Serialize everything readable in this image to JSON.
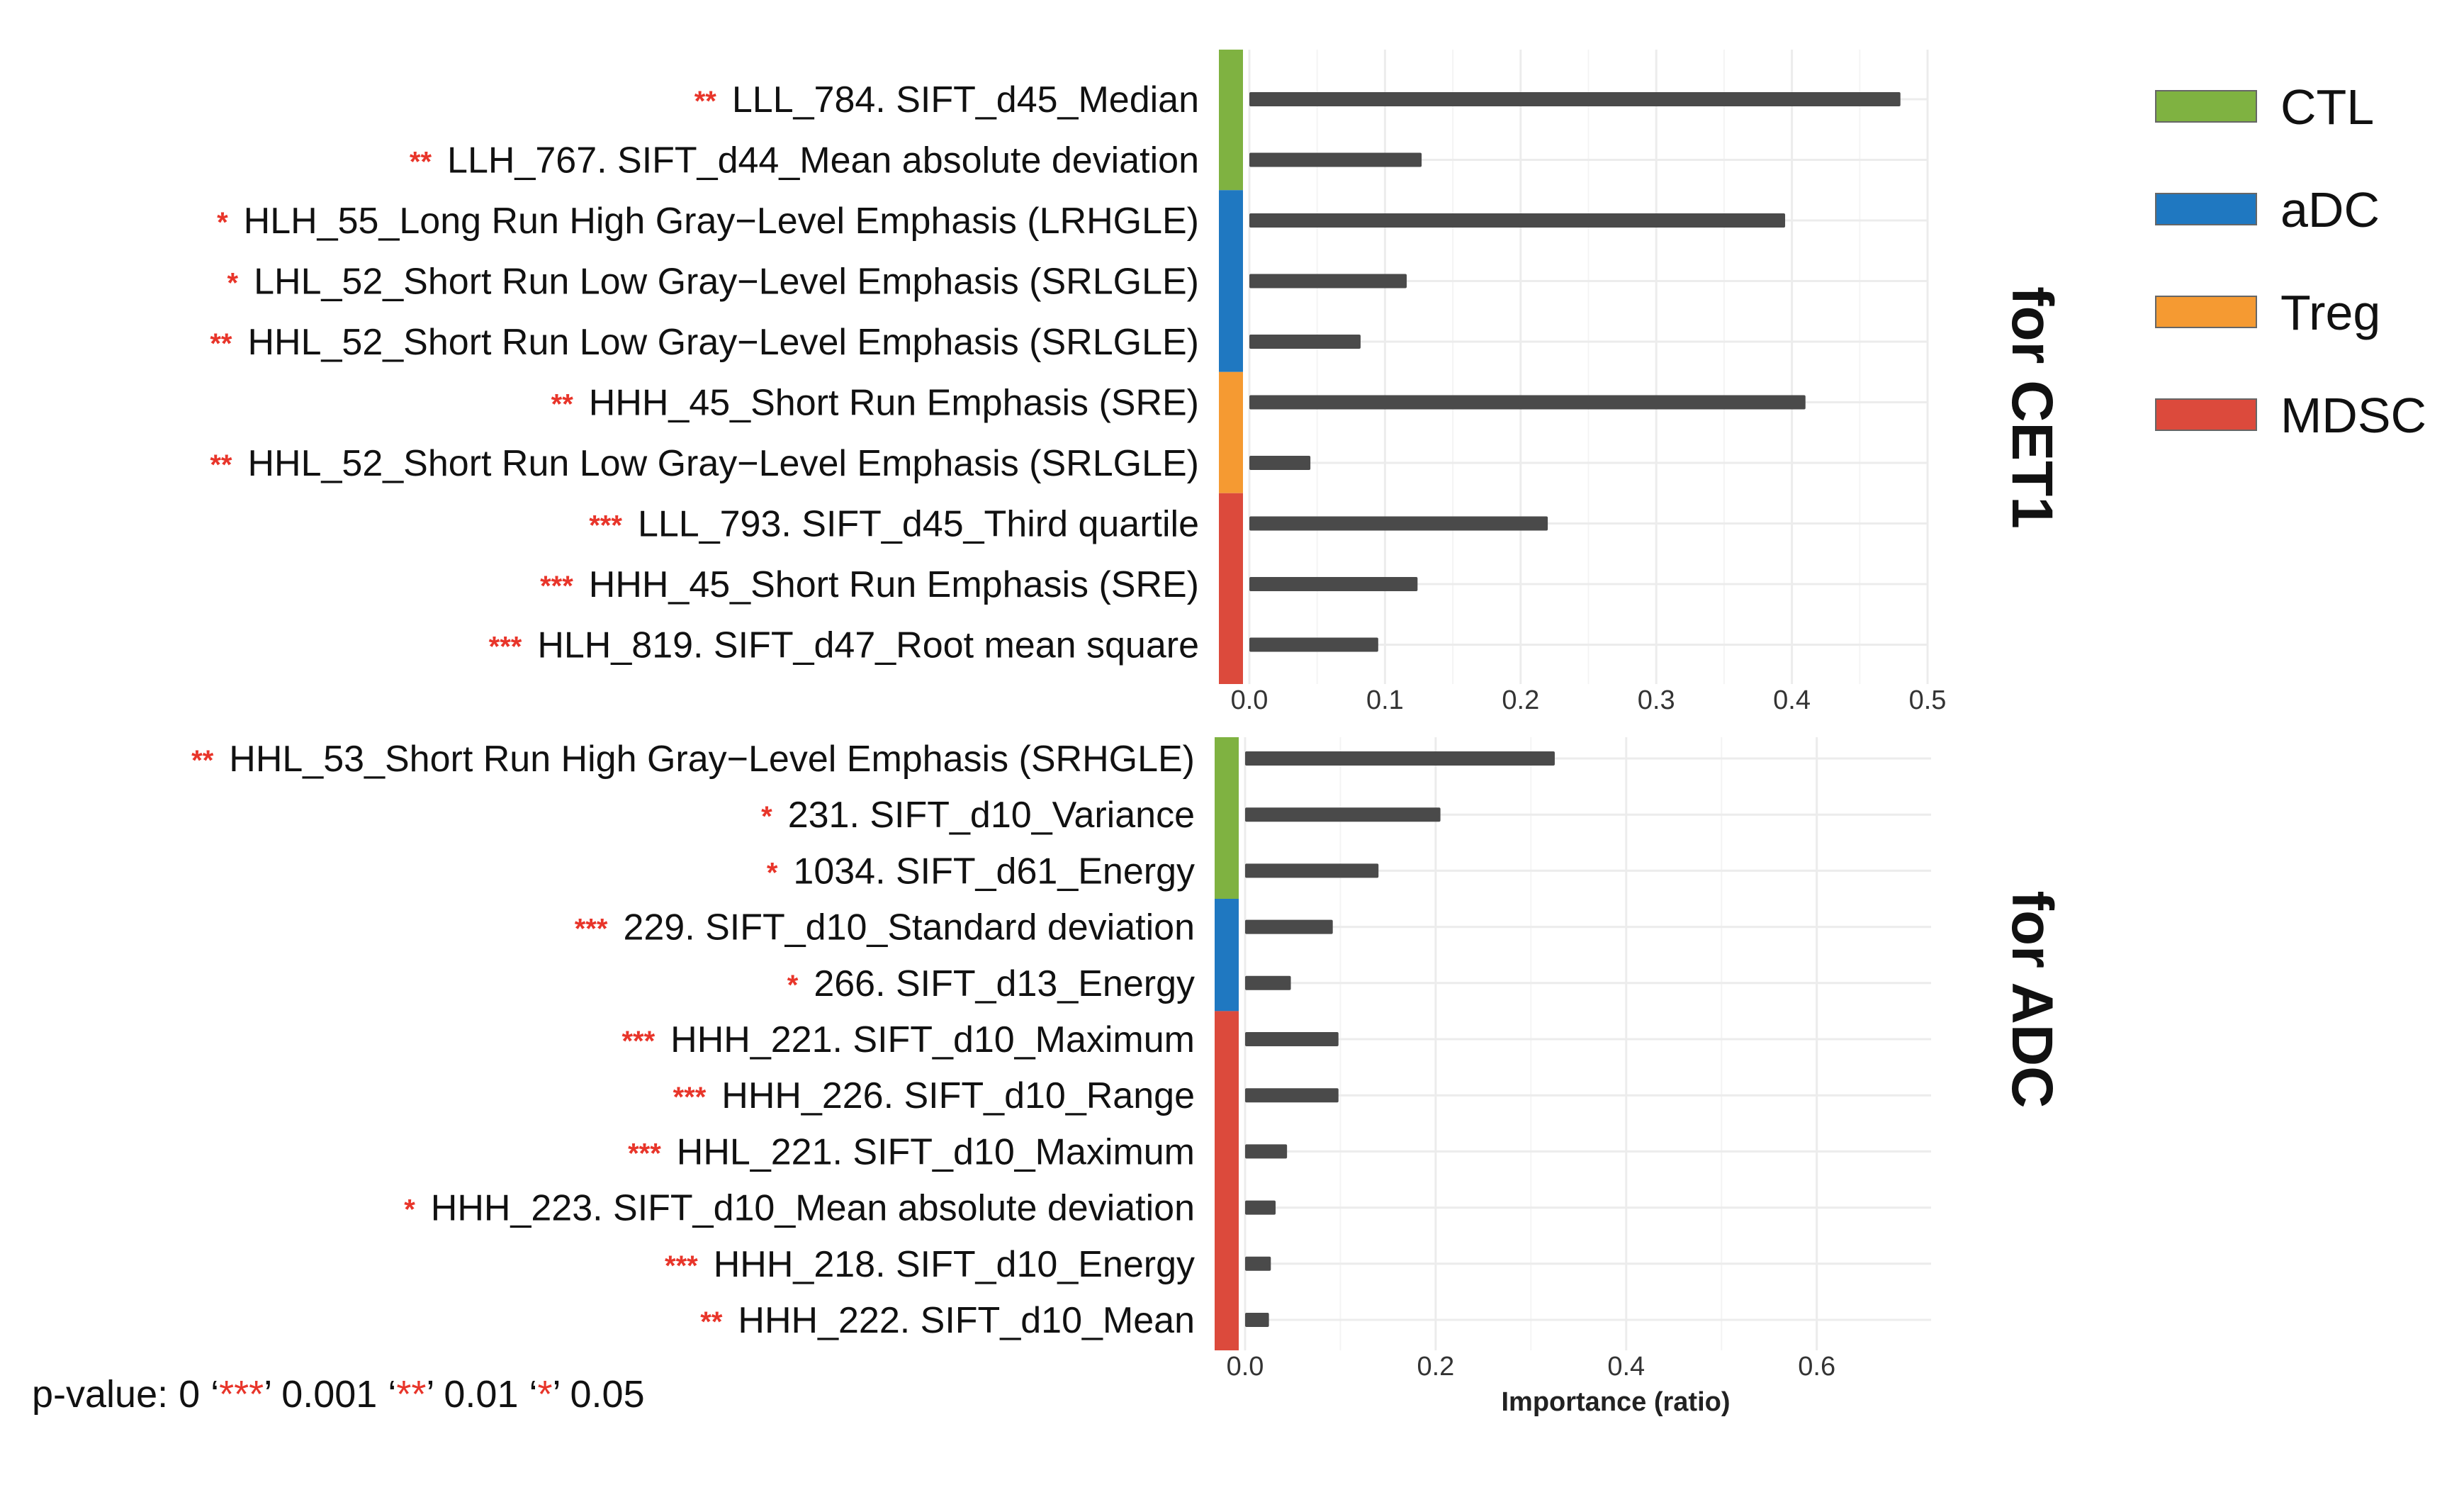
{
  "chart_data": [
    {
      "type": "bar",
      "orientation": "horizontal",
      "title": "for CET1",
      "xlabel": "",
      "xlim": [
        0,
        0.5
      ],
      "xticks": [
        "0.0",
        "0.1",
        "0.2",
        "0.3",
        "0.4",
        "0.5"
      ],
      "xtick_values": [
        0,
        0.1,
        0.2,
        0.3,
        0.4,
        0.5
      ],
      "bars": [
        {
          "stars": "**",
          "label": "LLL_784. SIFT_d45_Median",
          "value": 0.48,
          "group": "CTL"
        },
        {
          "stars": "**",
          "label": "LLH_767. SIFT_d44_Mean absolute deviation",
          "value": 0.127,
          "group": "CTL"
        },
        {
          "stars": "*",
          "label": "HLH_55_Long Run High Gray−Level Emphasis (LRHGLE)",
          "value": 0.395,
          "group": "aDC"
        },
        {
          "stars": "*",
          "label": "LHL_52_Short Run Low Gray−Level Emphasis (SRLGLE)",
          "value": 0.116,
          "group": "aDC"
        },
        {
          "stars": "**",
          "label": "HHL_52_Short Run Low Gray−Level Emphasis (SRLGLE)",
          "value": 0.082,
          "group": "aDC"
        },
        {
          "stars": "**",
          "label": "HHH_45_Short Run Emphasis (SRE)",
          "value": 0.41,
          "group": "Treg"
        },
        {
          "stars": "**",
          "label": "HHL_52_Short Run Low Gray−Level Emphasis (SRLGLE)",
          "value": 0.045,
          "group": "Treg"
        },
        {
          "stars": "***",
          "label": "LLL_793. SIFT_d45_Third quartile",
          "value": 0.22,
          "group": "MDSC"
        },
        {
          "stars": "***",
          "label": "HHH_45_Short Run Emphasis (SRE)",
          "value": 0.124,
          "group": "MDSC"
        },
        {
          "stars": "***",
          "label": "HLH_819. SIFT_d47_Root mean square",
          "value": 0.095,
          "group": "MDSC"
        }
      ]
    },
    {
      "type": "bar",
      "orientation": "horizontal",
      "title": "for ADC",
      "xlabel": "Importance (ratio)",
      "xlim": [
        0,
        0.72
      ],
      "xticks": [
        "0.0",
        "0.2",
        "0.4",
        "0.6"
      ],
      "xtick_values": [
        0,
        0.2,
        0.4,
        0.6
      ],
      "bars": [
        {
          "stars": "**",
          "label": "HHL_53_Short Run High Gray−Level Emphasis (SRHGLE)",
          "value": 0.325,
          "group": "CTL"
        },
        {
          "stars": "*",
          "label": "231. SIFT_d10_Variance",
          "value": 0.205,
          "group": "CTL"
        },
        {
          "stars": "*",
          "label": "1034. SIFT_d61_Energy",
          "value": 0.14,
          "group": "CTL"
        },
        {
          "stars": "***",
          "label": "229. SIFT_d10_Standard deviation",
          "value": 0.092,
          "group": "aDC"
        },
        {
          "stars": "*",
          "label": "266. SIFT_d13_Energy",
          "value": 0.048,
          "group": "aDC"
        },
        {
          "stars": "***",
          "label": "HHH_221. SIFT_d10_Maximum",
          "value": 0.098,
          "group": "MDSC"
        },
        {
          "stars": "***",
          "label": "HHH_226. SIFT_d10_Range",
          "value": 0.098,
          "group": "MDSC"
        },
        {
          "stars": "***",
          "label": "HHL_221. SIFT_d10_Maximum",
          "value": 0.044,
          "group": "MDSC"
        },
        {
          "stars": "*",
          "label": "HHH_223. SIFT_d10_Mean absolute deviation",
          "value": 0.032,
          "group": "MDSC"
        },
        {
          "stars": "***",
          "label": "HHH_218. SIFT_d10_Energy",
          "value": 0.027,
          "group": "MDSC"
        },
        {
          "stars": "**",
          "label": "HHH_222. SIFT_d10_Mean",
          "value": 0.025,
          "group": "MDSC"
        }
      ]
    }
  ],
  "legend": [
    {
      "name": "CTL",
      "color": "#7fb241"
    },
    {
      "name": "aDC",
      "color": "#1f78c1"
    },
    {
      "name": "Treg",
      "color": "#f59a32"
    },
    {
      "name": "MDSC",
      "color": "#dc4a3c"
    }
  ],
  "colors": {
    "bar": "#4a4a4a",
    "star": "#e8352a",
    "grid": "#ececec"
  },
  "pvalue_legend": {
    "prefix": "p-value: 0 ‘",
    "s3": "***",
    "mid1": "’ 0.001 ‘",
    "s2": "**",
    "mid2": "’ 0.01 ‘",
    "s1": "*",
    "mid3": "’ 0.05"
  }
}
